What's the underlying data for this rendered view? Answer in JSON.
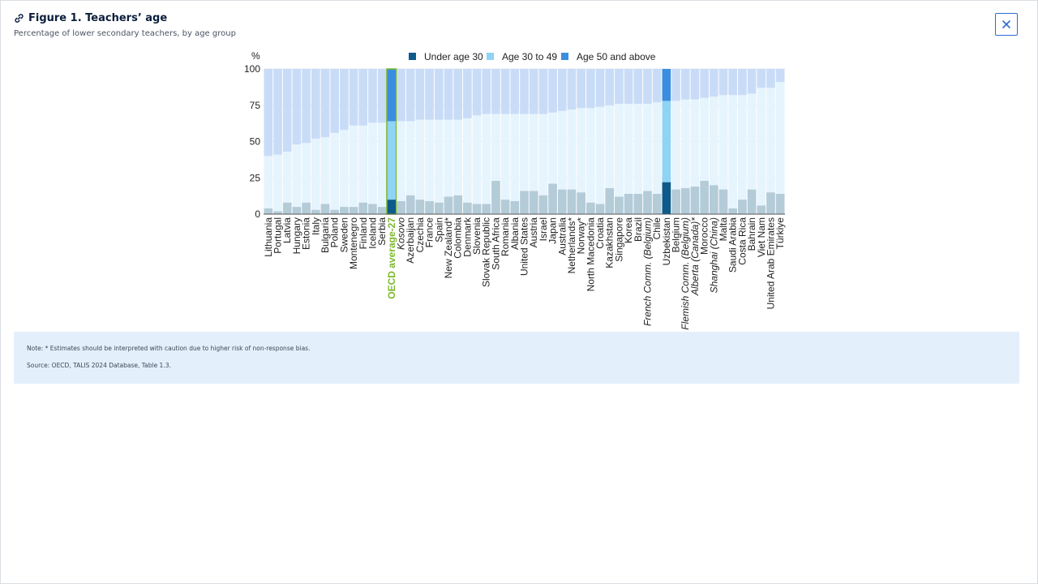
{
  "header": {
    "title": "Figure 1. Teachers’ age",
    "subtitle": "Percentage of lower secondary teachers, by age group"
  },
  "icons": {
    "link": "link-icon",
    "close": "close-icon"
  },
  "notes": {
    "note": "Note: * Estimates should be interpreted with caution due to higher risk of non-response bias.",
    "source": "Source: OECD, TALIS 2024 Database, Table 1.3."
  },
  "colors": {
    "under30": "#0e5a8a",
    "age30to49": "#8fd3f5",
    "age50plus": "#3b8de0",
    "under30_muted": "#b4cbd8",
    "age30to49_muted": "#e6f4fd",
    "age50plus_muted": "#c9dcf7",
    "oecd_label": "#7ab82b"
  },
  "chart_data": {
    "type": "bar",
    "stacked": true,
    "ylabel": "%",
    "ylim": [
      0,
      100
    ],
    "yticks": [
      0,
      25,
      50,
      75,
      100
    ],
    "legend": [
      "Under age 30",
      "Age 30 to 49",
      "Age 50 and above"
    ],
    "legend_position": "top",
    "categories": [
      "Lithuania",
      "Portugal",
      "Latvia",
      "Hungary",
      "Estonia",
      "Italy",
      "Bulgaria",
      "Poland",
      "Sweden",
      "Montenegro",
      "Finland",
      "Iceland",
      "Serbia",
      "OECD average-27",
      "Kosovo",
      "Azerbaijan",
      "Czechia",
      "France",
      "Spain",
      "New Zealand*",
      "Colombia",
      "Denmark",
      "Slovenia",
      "Slovak Republic",
      "South Africa",
      "Romania",
      "Albania",
      "United States",
      "Austria",
      "Israel",
      "Japan",
      "Australia",
      "Netherlands*",
      "Norway*",
      "North Macedonia",
      "Croatia",
      "Kazakhstan",
      "Singapore",
      "Korea",
      "Brazil",
      "French Comm. (Belgium)",
      "Chile",
      "Uzbekistan",
      "Belgium",
      "Flemish Comm. (Belgium)",
      "Alberta (Canada)*",
      "Morocco",
      "Shanghai (China)",
      "Malta",
      "Saudi Arabia",
      "Costa Rica",
      "Bahrain",
      "Viet Nam",
      "United Arab Emirates",
      "Türkiye"
    ],
    "italic_categories": [
      "Kosovo",
      "French Comm. (Belgium)",
      "Flemish Comm. (Belgium)",
      "Alberta (Canada)*",
      "Shanghai (China)"
    ],
    "highlighted_categories": [
      "OECD average-27",
      "Uzbekistan"
    ],
    "series": [
      {
        "name": "Under age 30",
        "values": [
          4,
          2,
          8,
          5,
          8,
          3,
          7,
          3,
          5,
          5,
          8,
          7,
          5,
          10,
          9,
          13,
          10,
          9,
          8,
          12,
          13,
          8,
          7,
          7,
          23,
          10,
          9,
          16,
          16,
          13,
          21,
          17,
          17,
          15,
          8,
          7,
          18,
          12,
          14,
          14,
          16,
          14,
          22,
          17,
          18,
          19,
          23,
          20,
          17,
          4,
          10,
          17,
          6,
          15,
          14
        ]
      },
      {
        "name": "Age 30 to 49",
        "values": [
          36,
          39,
          35,
          43,
          41,
          49,
          46,
          53,
          53,
          56,
          53,
          56,
          58,
          54,
          55,
          51,
          55,
          56,
          57,
          53,
          52,
          58,
          61,
          62,
          46,
          59,
          60,
          53,
          53,
          56,
          49,
          54,
          55,
          58,
          65,
          67,
          57,
          64,
          62,
          62,
          60,
          63,
          56,
          61,
          61,
          60,
          57,
          61,
          65,
          78,
          72,
          66,
          81,
          72,
          77
        ]
      },
      {
        "name": "Age 50 and above",
        "values": [
          60,
          59,
          57,
          52,
          51,
          48,
          47,
          44,
          42,
          39,
          39,
          37,
          37,
          36,
          36,
          36,
          35,
          35,
          35,
          35,
          35,
          34,
          32,
          31,
          31,
          31,
          31,
          31,
          31,
          31,
          30,
          29,
          28,
          27,
          27,
          26,
          25,
          24,
          24,
          24,
          24,
          23,
          22,
          22,
          21,
          21,
          20,
          19,
          18,
          18,
          18,
          17,
          13,
          13,
          9
        ]
      }
    ]
  }
}
